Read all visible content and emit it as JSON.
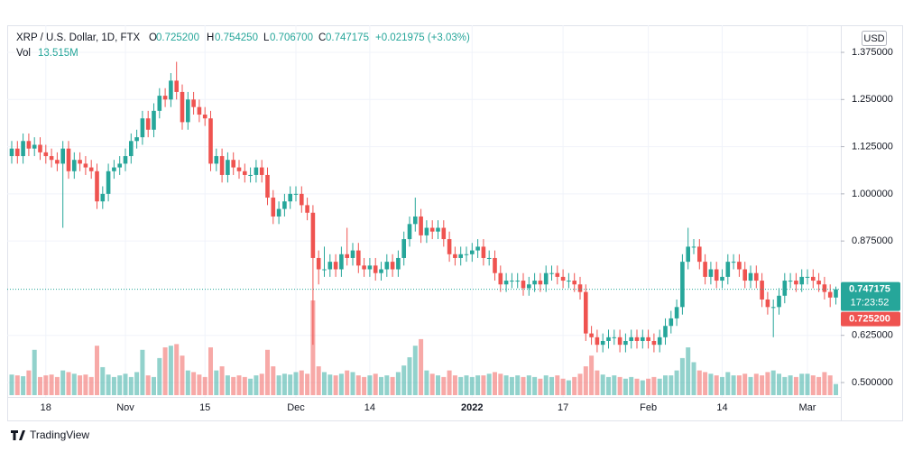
{
  "header": {
    "symbol": "XRP / U.S. Dollar, 1D, FTX",
    "o_key": "O",
    "o": "0.725200",
    "h_key": "H",
    "h": "0.754250",
    "l_key": "L",
    "l": "0.706700",
    "c_key": "C",
    "c": "0.747175",
    "change": "+0.021975 (+3.03%)",
    "vol_key": "Vol",
    "vol": "13.515M"
  },
  "chart_data": {
    "type": "candlestick",
    "categories": [
      null,
      null,
      null,
      null,
      null,
      null,
      "18",
      null,
      null,
      null,
      null,
      null,
      null,
      null,
      null,
      null,
      null,
      null,
      null,
      null,
      "Nov",
      null,
      null,
      null,
      null,
      null,
      null,
      null,
      null,
      null,
      null,
      null,
      null,
      null,
      "15",
      null,
      null,
      null,
      null,
      null,
      null,
      null,
      null,
      null,
      null,
      null,
      null,
      null,
      null,
      null,
      "Dec",
      null,
      null,
      null,
      null,
      null,
      null,
      null,
      null,
      null,
      null,
      null,
      null,
      "14",
      null,
      null,
      null,
      null,
      null,
      null,
      null,
      null,
      null,
      null,
      null,
      null,
      null,
      null,
      null,
      null,
      null,
      "2022",
      null,
      null,
      null,
      null,
      null,
      null,
      null,
      null,
      null,
      null,
      null,
      null,
      null,
      null,
      null,
      "17",
      null,
      null,
      null,
      null,
      null,
      null,
      null,
      null,
      null,
      null,
      null,
      null,
      null,
      null,
      "Feb",
      null,
      null,
      null,
      null,
      null,
      null,
      null,
      null,
      null,
      null,
      null,
      null,
      "14",
      null,
      null,
      null,
      null,
      null,
      null,
      null,
      null,
      null,
      null,
      null,
      null,
      null,
      null,
      "Mar",
      null,
      null,
      null,
      null,
      null
    ],
    "open": [
      1.1,
      1.12,
      1.1,
      1.14,
      1.12,
      1.13,
      1.11,
      1.1,
      1.09,
      1.08,
      1.12,
      1.06,
      1.09,
      1.08,
      1.07,
      1.06,
      0.98,
      1.0,
      1.06,
      1.07,
      1.08,
      1.1,
      1.14,
      1.15,
      1.2,
      1.17,
      1.22,
      1.26,
      1.25,
      1.3,
      1.27,
      1.19,
      1.25,
      1.23,
      1.21,
      1.2,
      1.08,
      1.1,
      1.05,
      1.09,
      1.07,
      1.06,
      1.05,
      1.05,
      1.07,
      1.05,
      0.99,
      0.94,
      0.96,
      0.98,
      1.0,
      1.0,
      0.97,
      0.95,
      0.83,
      0.8,
      0.8,
      0.82,
      0.8,
      0.84,
      0.83,
      0.85,
      0.81,
      0.8,
      0.81,
      0.79,
      0.8,
      0.82,
      0.8,
      0.83,
      0.88,
      0.92,
      0.94,
      0.89,
      0.91,
      0.9,
      0.91,
      0.88,
      0.84,
      0.83,
      0.84,
      0.84,
      0.85,
      0.86,
      0.83,
      0.83,
      0.79,
      0.76,
      0.77,
      0.77,
      0.77,
      0.75,
      0.76,
      0.77,
      0.76,
      0.79,
      0.79,
      0.78,
      0.77,
      0.77,
      0.76,
      0.74,
      0.63,
      0.62,
      0.6,
      0.61,
      0.62,
      0.62,
      0.6,
      0.61,
      0.62,
      0.61,
      0.62,
      0.61,
      0.6,
      0.62,
      0.65,
      0.67,
      0.7,
      0.82,
      0.86,
      0.86,
      0.82,
      0.78,
      0.8,
      0.77,
      0.78,
      0.82,
      0.82,
      0.8,
      0.77,
      0.79,
      0.77,
      0.72,
      0.7,
      0.7,
      0.73,
      0.77,
      0.77,
      0.76,
      0.78,
      0.78,
      0.77,
      0.76,
      0.74,
      0.7252
    ],
    "high": [
      1.14,
      1.14,
      1.16,
      1.16,
      1.15,
      1.15,
      1.13,
      1.12,
      1.11,
      1.14,
      1.14,
      1.11,
      1.11,
      1.1,
      1.09,
      1.08,
      1.02,
      1.08,
      1.09,
      1.1,
      1.12,
      1.16,
      1.17,
      1.22,
      1.22,
      1.24,
      1.28,
      1.28,
      1.32,
      1.35,
      1.29,
      1.27,
      1.27,
      1.25,
      1.23,
      1.22,
      1.12,
      1.12,
      1.11,
      1.11,
      1.09,
      1.08,
      1.07,
      1.09,
      1.09,
      1.07,
      1.01,
      0.98,
      1.0,
      1.02,
      1.02,
      1.02,
      0.99,
      0.97,
      0.85,
      0.86,
      0.84,
      0.84,
      0.86,
      0.91,
      0.87,
      0.87,
      0.83,
      0.83,
      0.83,
      0.82,
      0.84,
      0.84,
      0.85,
      0.9,
      0.94,
      0.99,
      0.96,
      0.93,
      0.93,
      0.93,
      0.93,
      0.9,
      0.86,
      0.86,
      0.86,
      0.87,
      0.88,
      0.88,
      0.85,
      0.85,
      0.81,
      0.79,
      0.79,
      0.79,
      0.79,
      0.78,
      0.79,
      0.79,
      0.81,
      0.81,
      0.81,
      0.8,
      0.79,
      0.79,
      0.78,
      0.76,
      0.65,
      0.64,
      0.63,
      0.64,
      0.64,
      0.64,
      0.63,
      0.64,
      0.64,
      0.64,
      0.64,
      0.63,
      0.64,
      0.67,
      0.69,
      0.72,
      0.84,
      0.91,
      0.88,
      0.88,
      0.84,
      0.82,
      0.82,
      0.8,
      0.84,
      0.84,
      0.84,
      0.82,
      0.81,
      0.81,
      0.79,
      0.74,
      0.72,
      0.75,
      0.79,
      0.79,
      0.79,
      0.8,
      0.8,
      0.8,
      0.79,
      0.78,
      0.76,
      0.75425
    ],
    "low": [
      1.08,
      1.08,
      1.08,
      1.1,
      1.1,
      1.09,
      1.08,
      1.07,
      1.06,
      0.91,
      1.04,
      1.04,
      1.06,
      1.05,
      1.04,
      0.96,
      0.96,
      0.98,
      1.04,
      1.05,
      1.06,
      1.08,
      1.12,
      1.13,
      1.15,
      1.15,
      1.2,
      1.23,
      1.23,
      1.25,
      1.17,
      1.17,
      1.21,
      1.19,
      1.18,
      1.06,
      1.06,
      1.03,
      1.03,
      1.05,
      1.04,
      1.03,
      1.03,
      1.03,
      1.03,
      0.97,
      0.92,
      0.92,
      0.94,
      0.96,
      0.98,
      0.95,
      0.93,
      0.6,
      0.76,
      0.78,
      0.78,
      0.78,
      0.78,
      0.81,
      0.81,
      0.79,
      0.78,
      0.78,
      0.77,
      0.77,
      0.78,
      0.78,
      0.78,
      0.81,
      0.86,
      0.9,
      0.87,
      0.87,
      0.88,
      0.88,
      0.86,
      0.82,
      0.81,
      0.81,
      0.82,
      0.82,
      0.83,
      0.81,
      0.81,
      0.77,
      0.74,
      0.74,
      0.75,
      0.75,
      0.73,
      0.73,
      0.74,
      0.74,
      0.74,
      0.77,
      0.76,
      0.75,
      0.75,
      0.74,
      0.72,
      0.61,
      0.6,
      0.58,
      0.58,
      0.59,
      0.6,
      0.58,
      0.58,
      0.59,
      0.59,
      0.59,
      0.59,
      0.58,
      0.58,
      0.6,
      0.63,
      0.65,
      0.68,
      0.8,
      0.84,
      0.8,
      0.76,
      0.76,
      0.75,
      0.75,
      0.76,
      0.8,
      0.78,
      0.75,
      0.75,
      0.75,
      0.7,
      0.68,
      0.62,
      0.68,
      0.71,
      0.75,
      0.74,
      0.74,
      0.76,
      0.75,
      0.74,
      0.72,
      0.7,
      0.7067
    ],
    "close": [
      1.12,
      1.1,
      1.14,
      1.12,
      1.13,
      1.11,
      1.1,
      1.09,
      1.08,
      1.12,
      1.06,
      1.09,
      1.08,
      1.07,
      1.06,
      0.98,
      1.0,
      1.06,
      1.07,
      1.08,
      1.1,
      1.14,
      1.15,
      1.2,
      1.17,
      1.22,
      1.26,
      1.25,
      1.3,
      1.27,
      1.19,
      1.25,
      1.23,
      1.21,
      1.2,
      1.08,
      1.1,
      1.05,
      1.09,
      1.07,
      1.06,
      1.05,
      1.05,
      1.07,
      1.05,
      0.99,
      0.94,
      0.96,
      0.98,
      1.0,
      1.0,
      0.97,
      0.95,
      0.83,
      0.8,
      0.8,
      0.82,
      0.8,
      0.84,
      0.83,
      0.85,
      0.81,
      0.8,
      0.81,
      0.79,
      0.8,
      0.82,
      0.8,
      0.83,
      0.88,
      0.92,
      0.94,
      0.89,
      0.91,
      0.9,
      0.91,
      0.88,
      0.84,
      0.83,
      0.84,
      0.84,
      0.85,
      0.86,
      0.83,
      0.83,
      0.79,
      0.76,
      0.77,
      0.77,
      0.77,
      0.75,
      0.76,
      0.77,
      0.76,
      0.79,
      0.79,
      0.78,
      0.77,
      0.77,
      0.76,
      0.74,
      0.63,
      0.62,
      0.6,
      0.61,
      0.62,
      0.62,
      0.6,
      0.61,
      0.62,
      0.61,
      0.62,
      0.61,
      0.6,
      0.62,
      0.65,
      0.67,
      0.7,
      0.82,
      0.86,
      0.86,
      0.82,
      0.78,
      0.8,
      0.77,
      0.78,
      0.82,
      0.82,
      0.8,
      0.77,
      0.79,
      0.77,
      0.72,
      0.7,
      0.7,
      0.73,
      0.77,
      0.77,
      0.76,
      0.78,
      0.78,
      0.77,
      0.76,
      0.74,
      0.7252,
      0.747175
    ],
    "volume": [
      25,
      24,
      23,
      30,
      55,
      22,
      24,
      25,
      22,
      30,
      28,
      26,
      24,
      25,
      22,
      60,
      34,
      25,
      22,
      24,
      26,
      22,
      28,
      55,
      24,
      22,
      45,
      58,
      60,
      62,
      48,
      30,
      28,
      25,
      22,
      58,
      30,
      35,
      24,
      22,
      24,
      22,
      20,
      24,
      26,
      55,
      35,
      24,
      26,
      25,
      28,
      30,
      26,
      115,
      35,
      28,
      25,
      24,
      26,
      30,
      28,
      24,
      22,
      24,
      26,
      22,
      24,
      22,
      28,
      36,
      46,
      60,
      68,
      30,
      26,
      24,
      22,
      30,
      24,
      22,
      24,
      22,
      24,
      24,
      26,
      28,
      26,
      24,
      22,
      24,
      22,
      24,
      22,
      20,
      24,
      22,
      24,
      20,
      18,
      22,
      26,
      35,
      48,
      30,
      25,
      22,
      24,
      22,
      20,
      22,
      20,
      18,
      20,
      22,
      20,
      24,
      24,
      30,
      45,
      58,
      40,
      30,
      28,
      26,
      24,
      22,
      28,
      24,
      24,
      26,
      22,
      26,
      24,
      28,
      30,
      26,
      22,
      24,
      22,
      26,
      26,
      24,
      22,
      28,
      24,
      13.515
    ],
    "up_color": "#26a69a",
    "down_color": "#ef5350",
    "ylim": [
      0.4665,
      1.442
    ],
    "yticks": [
      {
        "value": 0.5,
        "label": "0.500000"
      },
      {
        "value": 0.625,
        "label": "0.625000"
      },
      {
        "value": 0.875,
        "label": "0.875000"
      },
      {
        "value": 1.0,
        "label": "1.000000"
      },
      {
        "value": 1.125,
        "label": "1.125000"
      },
      {
        "value": 1.25,
        "label": "1.250000"
      },
      {
        "value": 1.375,
        "label": "1.375000"
      }
    ],
    "grid": true,
    "currency": "USD",
    "last_label": "0.747175",
    "countdown": "17:23:52",
    "open_label": "0.725200"
  },
  "footer": {
    "brand": "TradingView"
  }
}
